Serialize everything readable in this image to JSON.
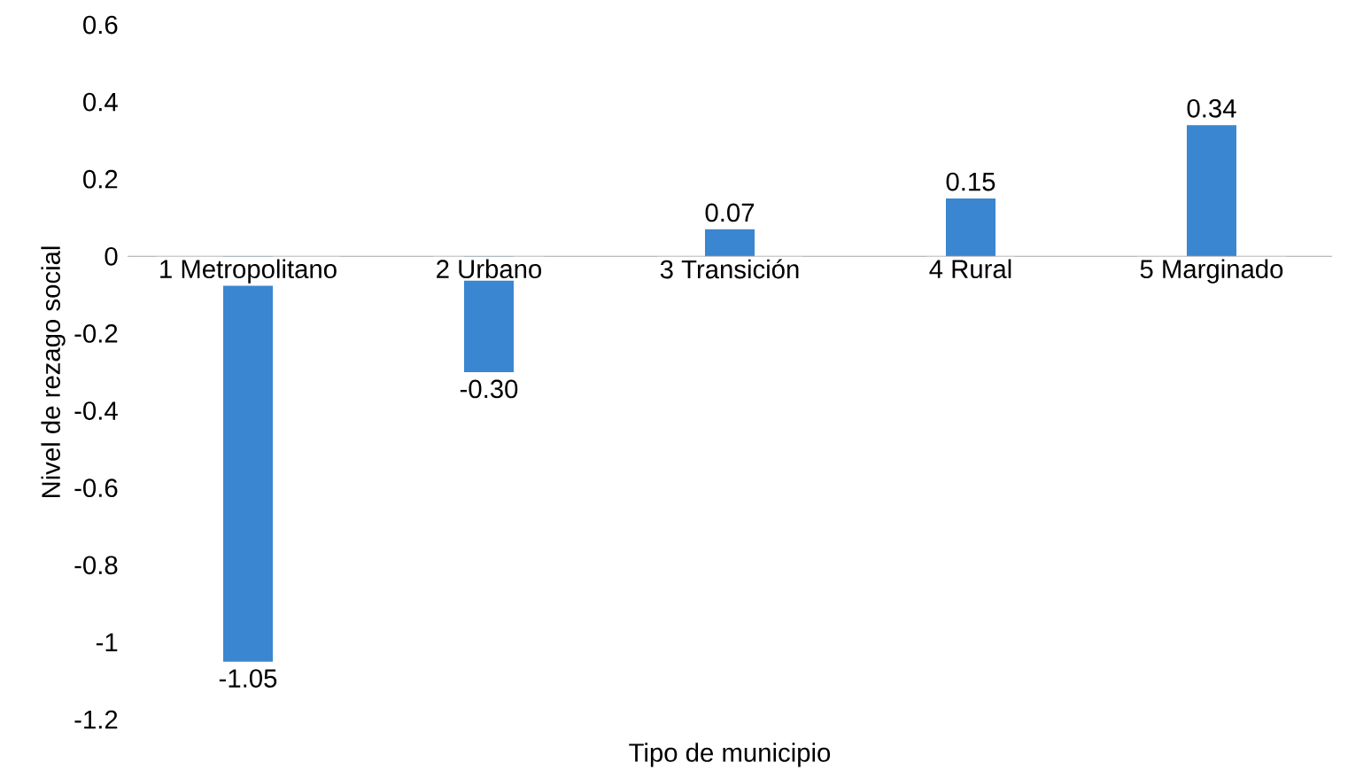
{
  "chart_data": {
    "type": "bar",
    "xlabel": "Tipo de municipio",
    "ylabel": "Nivel de rezago social",
    "categories": [
      "1 Metropolitano",
      "2 Urbano",
      "3 Transición",
      "4 Rural",
      "5 Marginado"
    ],
    "values": [
      -1.05,
      -0.3,
      0.07,
      0.15,
      0.34
    ],
    "value_labels": [
      "-1.05",
      "-0.30",
      "0.07",
      "0.15",
      "0.34"
    ],
    "color": "#3a86d0",
    "ylim": [
      -1.2,
      0.6
    ],
    "yticks": [
      -1.2,
      -1,
      -0.8,
      -0.6,
      -0.4,
      -0.2,
      0,
      0.2,
      0.4,
      0.6
    ],
    "grid": false
  }
}
